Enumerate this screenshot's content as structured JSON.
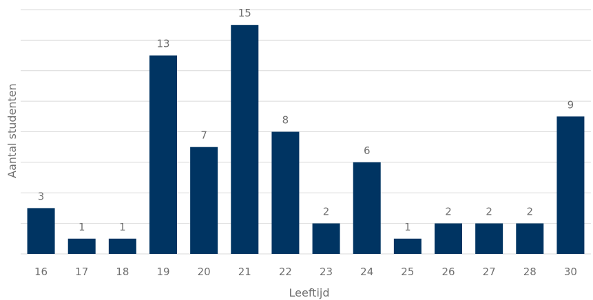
{
  "chart_data": {
    "type": "bar",
    "categories": [
      "16",
      "17",
      "18",
      "19",
      "20",
      "21",
      "22",
      "23",
      "24",
      "25",
      "26",
      "27",
      "28",
      "30"
    ],
    "values": [
      3,
      1,
      1,
      13,
      7,
      15,
      8,
      2,
      6,
      1,
      2,
      2,
      2,
      9
    ],
    "data_labels": [
      "3",
      "1",
      "1",
      "13",
      "7",
      "15",
      "8",
      "2",
      "6",
      "1",
      "2",
      "2",
      "2",
      "9"
    ],
    "xlabel": "Leeftijd",
    "ylabel": "Aantal studenten",
    "ylim": [
      0,
      16
    ],
    "grid": true,
    "colors": {
      "bar": "#003462",
      "grid": "#d9d9d9",
      "text": "#6f6f6f"
    }
  }
}
